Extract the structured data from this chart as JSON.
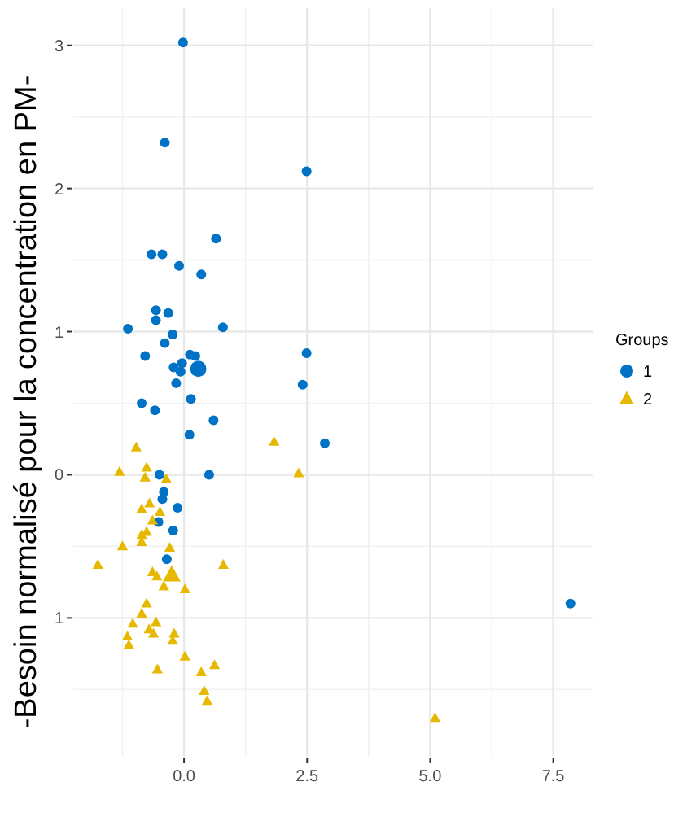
{
  "chart_data": {
    "type": "scatter",
    "ylabel": "-Besoin normalisé pour la concentration en PM-",
    "legend_title": "Groups",
    "legend": "right",
    "grid": true,
    "xlim": [
      -2.25,
      8.3
    ],
    "ylim": [
      -1.97,
      3.26
    ],
    "xticks": [
      {
        "value": 0,
        "label": "0.0"
      },
      2.5,
      {
        "value": 5,
        "label": "5.0"
      },
      7.5
    ],
    "yticks": [
      3,
      2,
      1,
      0,
      {
        "value": -1,
        "label": "1"
      }
    ],
    "series": [
      {
        "name": "1",
        "color": "#0072c6",
        "marker": "circle",
        "x": [
          -0.02,
          -0.39,
          2.49,
          0.65,
          -0.66,
          -0.44,
          -0.1,
          0.35,
          -0.57,
          -0.32,
          -0.57,
          -1.14,
          0.79,
          -0.39,
          -0.23,
          -0.79,
          0.12,
          0.23,
          2.49,
          -0.21,
          -0.04,
          -0.07,
          -0.16,
          2.41,
          0.14,
          -0.86,
          -0.59,
          0.6,
          0.11,
          2.86,
          -0.5,
          0.51,
          -0.41,
          -0.44,
          -0.13,
          -0.52,
          -0.22,
          -0.35,
          7.85
        ],
        "values": [
          3.02,
          2.32,
          2.12,
          1.65,
          1.54,
          1.54,
          1.46,
          1.4,
          1.15,
          1.13,
          1.08,
          1.02,
          1.03,
          0.92,
          0.98,
          0.83,
          0.84,
          0.83,
          0.85,
          0.75,
          0.78,
          0.72,
          0.64,
          0.63,
          0.53,
          0.5,
          0.45,
          0.38,
          0.28,
          0.22,
          0.0,
          0.0,
          -0.12,
          -0.17,
          -0.23,
          -0.33,
          -0.39,
          -0.59,
          -0.9
        ]
      },
      {
        "name": "2",
        "color": "#e6b800",
        "marker": "triangle",
        "x": [
          -0.97,
          1.83,
          -1.31,
          -0.76,
          -0.79,
          -0.36,
          2.33,
          -0.7,
          -0.86,
          -0.49,
          -0.64,
          -0.76,
          -0.86,
          -0.86,
          -1.25,
          -0.29,
          -1.75,
          0.8,
          -0.64,
          -0.55,
          -0.41,
          0.02,
          -0.76,
          -0.86,
          -0.57,
          -1.04,
          -0.71,
          -0.62,
          -0.2,
          -1.15,
          -0.23,
          -1.12,
          0.02,
          -0.54,
          0.35,
          0.62,
          0.41,
          0.47,
          5.1
        ],
        "values": [
          0.19,
          0.23,
          0.02,
          0.05,
          -0.02,
          -0.03,
          0.01,
          -0.2,
          -0.24,
          -0.26,
          -0.32,
          -0.4,
          -0.42,
          -0.47,
          -0.5,
          -0.51,
          -0.63,
          -0.63,
          -0.68,
          -0.71,
          -0.78,
          -0.8,
          -0.9,
          -0.97,
          -1.03,
          -1.04,
          -1.08,
          -1.11,
          -1.11,
          -1.13,
          -1.16,
          -1.19,
          -1.27,
          -1.36,
          -1.38,
          -1.33,
          -1.51,
          -1.58,
          -1.7
        ]
      },
      {
        "color": "#0072c6",
        "marker": "circle",
        "x": [
          0.29
        ],
        "values": [
          0.74
        ]
      },
      {
        "color": "#e6b800",
        "marker": "triangle",
        "x": [
          -0.25
        ],
        "values": [
          -0.7
        ]
      }
    ]
  }
}
